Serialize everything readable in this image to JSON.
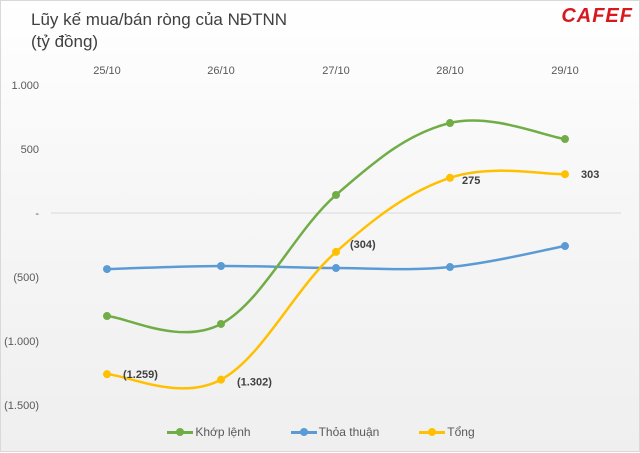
{
  "header": {
    "title_line1": "Lũy kế mua/bán ròng của NĐTNN",
    "title_line2": "(tỷ đồng)",
    "logo": "CAFEF"
  },
  "chart_data": {
    "type": "line",
    "title": "Lũy kế mua/bán ròng của NĐTNN (tỷ đồng)",
    "xlabel": "",
    "ylabel": "tỷ đồng",
    "categories": [
      "25/10",
      "26/10",
      "27/10",
      "28/10",
      "29/10"
    ],
    "ylim": [
      -1500,
      1000
    ],
    "yticks": [
      1000,
      500,
      0,
      -500,
      -1000,
      -1500
    ],
    "ytick_labels": [
      "1.000",
      "500",
      "-",
      "(500)",
      "(1.000)",
      "(1.500)"
    ],
    "grid": false,
    "zero_line": true,
    "legend_position": "bottom",
    "series": [
      {
        "name": "Khớp lệnh",
        "color": "#70AD47",
        "values": [
          -805,
          -867,
          141,
          703,
          578
        ]
      },
      {
        "name": "Thỏa thuận",
        "color": "#5B9BD5",
        "values": [
          -438,
          -414,
          -430,
          -422,
          -258
        ]
      },
      {
        "name": "Tổng",
        "color": "#FFC000",
        "values": [
          -1259,
          -1302,
          -304,
          275,
          303
        ],
        "data_labels": [
          "(1.259)",
          "(1.302)",
          "(304)",
          "275",
          "303"
        ]
      }
    ]
  }
}
